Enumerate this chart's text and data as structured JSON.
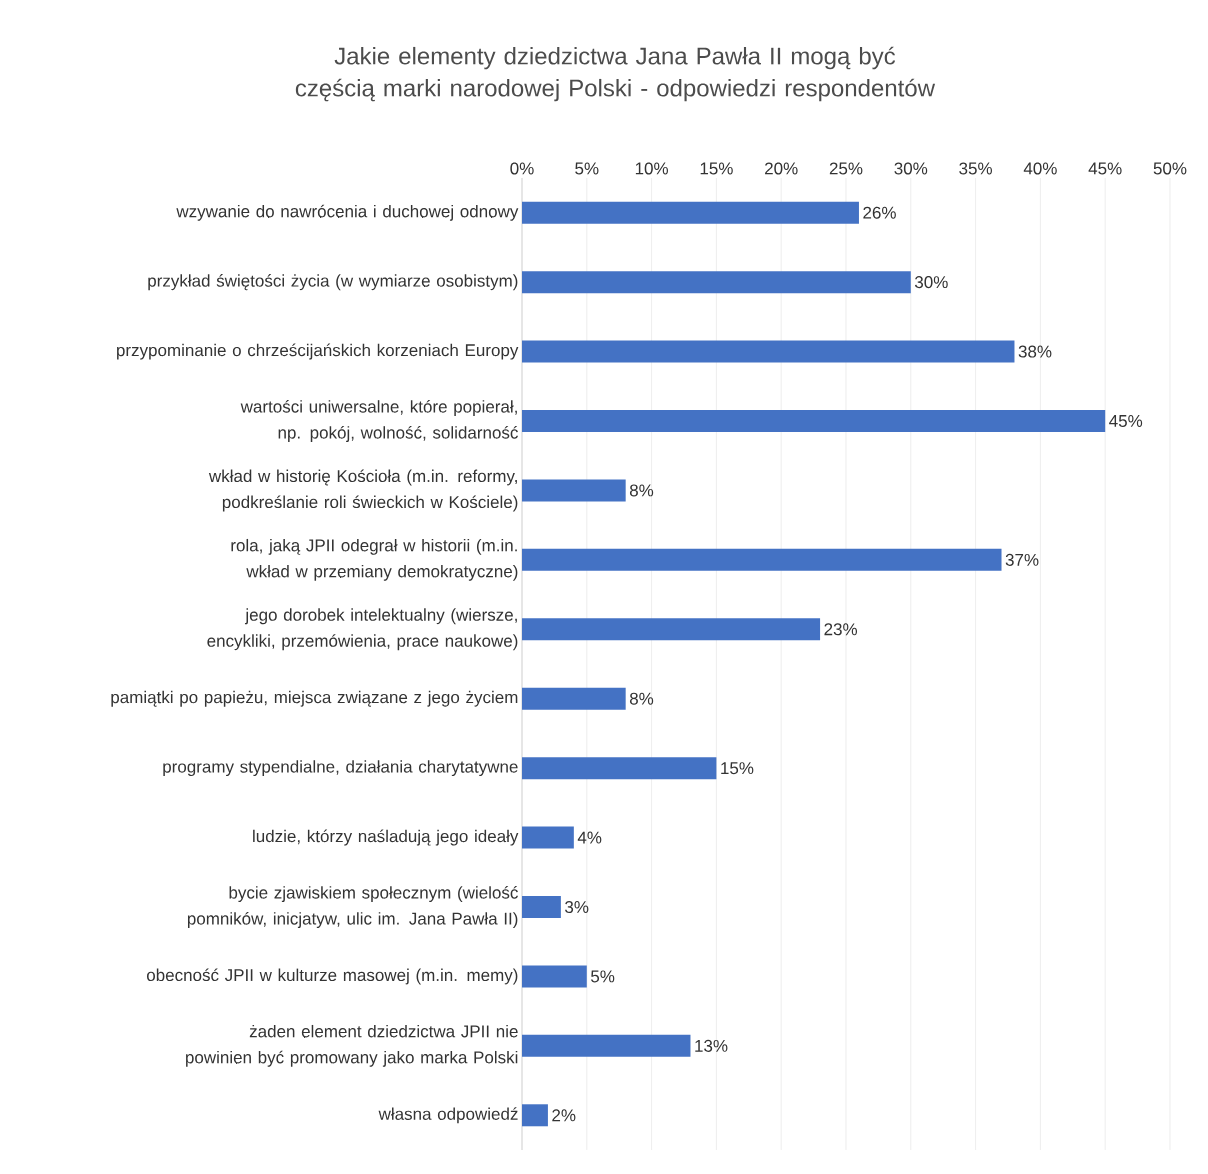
{
  "chart_data": {
    "type": "bar",
    "orientation": "horizontal",
    "title": "Jakie elementy dziedzictwa Jana Pawła II mogą być częścią marki narodowej Polski - odpowiedzi respondentów",
    "categories": [
      "wzywanie do nawrócenia i duchowej odnowy",
      "przykład świętości życia (w wymiarze osobistym)",
      "przypominanie o chrześcijańskich korzeniach Europy",
      "wartości uniwersalne, które popierał, np. pokój, wolność, solidarność",
      "wkład w historię Kościoła (m.in. reformy, podkreślanie roli świeckich w Kościele)",
      "rola, jaką JPII odegrał w historii (m.in. wkład w przemiany demokratyczne)",
      "jego dorobek intelektualny (wiersze, encykliki, przemówienia, prace naukowe)",
      "pamiątki po papieżu, miejsca związane z jego życiem",
      "programy stypendialne, działania charytatywne",
      "ludzie, którzy naśladują jego ideały",
      "bycie zjawiskiem społecznym (wielość pomników, inicjatyw, ulic im. Jana Pawła II)",
      "obecność JPII w kulturze masowej (m.in. memy)",
      "żaden element dziedzictwa JPII nie powinien być promowany jako marka Polski",
      "własna odpowiedź"
    ],
    "values": [
      26,
      30,
      38,
      45,
      8,
      37,
      23,
      8,
      15,
      4,
      3,
      5,
      13,
      2
    ],
    "value_labels": [
      "26%",
      "30%",
      "38%",
      "45%",
      "8%",
      "37%",
      "23%",
      "8%",
      "15%",
      "4%",
      "3%",
      "5%",
      "13%",
      "2%"
    ],
    "color": "#4472c4",
    "xlim": [
      0,
      50
    ],
    "xticks": [
      {
        "value": 0,
        "label": "0%"
      },
      {
        "value": 5,
        "label": "5%"
      },
      {
        "value": 10,
        "label": "10%"
      },
      {
        "value": 15,
        "label": "15%"
      },
      {
        "value": 20,
        "label": "20%"
      },
      {
        "value": 25,
        "label": "25%"
      },
      {
        "value": 30,
        "label": "30%"
      },
      {
        "value": 35,
        "label": "35%"
      },
      {
        "value": 40,
        "label": "40%"
      },
      {
        "value": 45,
        "label": "45%"
      },
      {
        "value": 50,
        "label": "50%"
      }
    ],
    "grid": "x"
  }
}
